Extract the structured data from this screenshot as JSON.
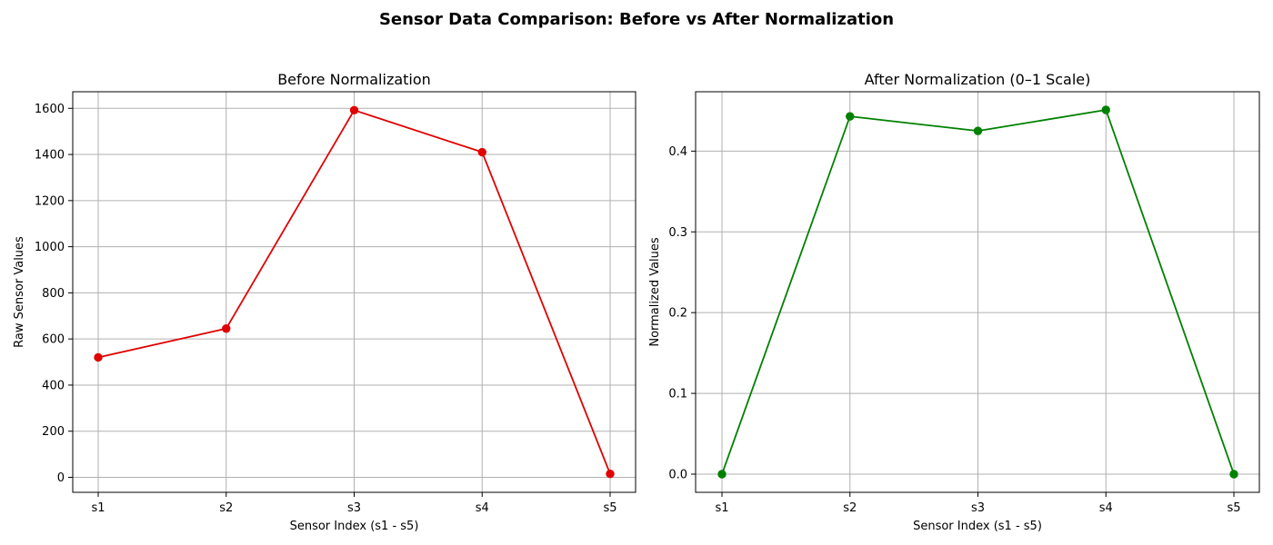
{
  "figure": {
    "title": "Sensor Data Comparison: Before vs After Normalization"
  },
  "chart_data": [
    {
      "type": "line",
      "title": "Before Normalization",
      "xlabel": "Sensor Index (s1 - s5)",
      "ylabel": "Raw Sensor Values",
      "categories": [
        "s1",
        "s2",
        "s3",
        "s4",
        "s5"
      ],
      "series": [
        {
          "values": [
            520,
            645,
            1592,
            1410,
            15
          ],
          "color": "#e00000",
          "marker": "circle"
        }
      ],
      "ylim": [
        -65,
        1672
      ],
      "yticks": [
        0,
        200,
        400,
        600,
        800,
        1000,
        1200,
        1400,
        1600
      ],
      "ytick_labels": [
        "0",
        "200",
        "400",
        "600",
        "800",
        "1000",
        "1200",
        "1400",
        "1600"
      ],
      "grid": true,
      "legend": "none"
    },
    {
      "type": "line",
      "title": "After Normalization (0–1 Scale)",
      "xlabel": "Sensor Index (s1 - s5)",
      "ylabel": "Normalized Values",
      "categories": [
        "s1",
        "s2",
        "s3",
        "s4",
        "s5"
      ],
      "series": [
        {
          "values": [
            0.0,
            0.443,
            0.425,
            0.451,
            0.0
          ],
          "color": "#008000",
          "marker": "circle"
        }
      ],
      "ylim": [
        -0.0225,
        0.4735
      ],
      "yticks": [
        0.0,
        0.1,
        0.2,
        0.3,
        0.4
      ],
      "ytick_labels": [
        "0.0",
        "0.1",
        "0.2",
        "0.3",
        "0.4"
      ],
      "grid": true,
      "legend": "none"
    }
  ]
}
